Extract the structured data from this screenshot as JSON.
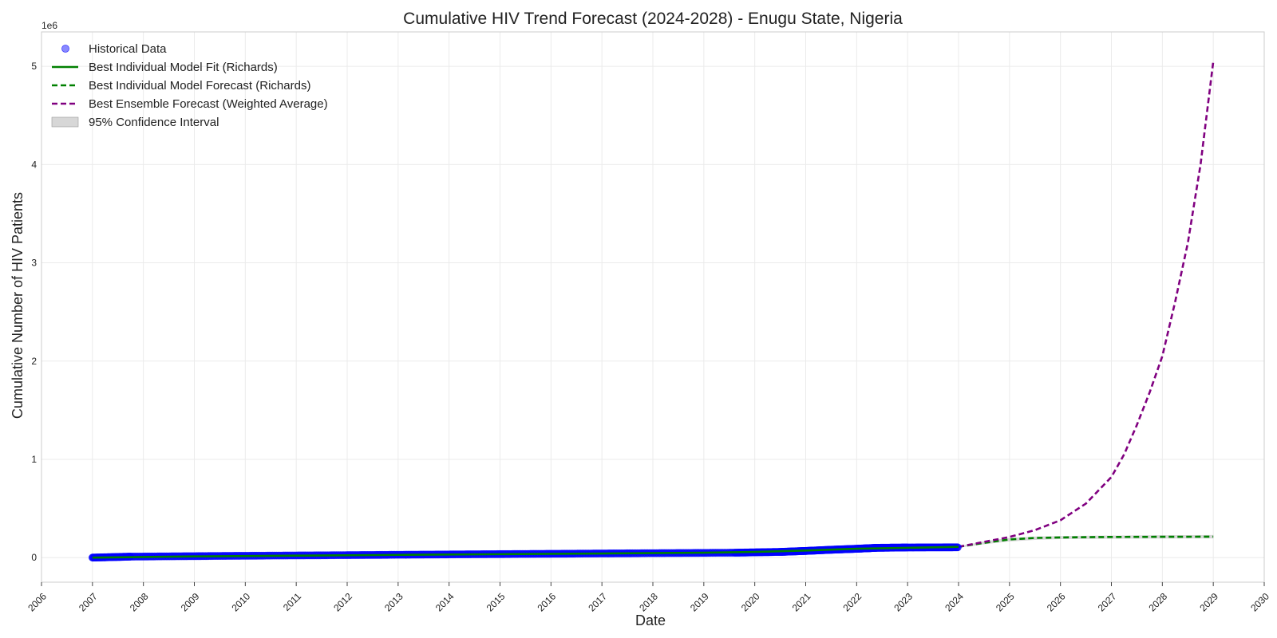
{
  "chart_data": {
    "type": "line",
    "title": "Cumulative HIV Trend Forecast (2024-2028) - Enugu State, Nigeria",
    "xlabel": "Date",
    "ylabel": "Cumulative Number of HIV Patients",
    "y_scale_note": "1e6",
    "xlim": [
      2006,
      2030
    ],
    "ylim": [
      -250000,
      5350000
    ],
    "x_ticks": [
      2006,
      2007,
      2008,
      2009,
      2010,
      2011,
      2012,
      2013,
      2014,
      2015,
      2016,
      2017,
      2018,
      2019,
      2020,
      2021,
      2022,
      2023,
      2024,
      2025,
      2026,
      2027,
      2028,
      2029,
      2030
    ],
    "x_tick_labels": [
      "2006",
      "2007",
      "2008",
      "2009",
      "2010",
      "2011",
      "2012",
      "2013",
      "2014",
      "2015",
      "2016",
      "2017",
      "2018",
      "2019",
      "2020",
      "2021",
      "2022",
      "2023",
      "2024",
      "2025",
      "2026",
      "2027",
      "2028",
      "2029",
      "2030"
    ],
    "y_ticks": [
      0,
      1000000,
      2000000,
      3000000,
      4000000,
      5000000
    ],
    "y_tick_labels": [
      "0",
      "1",
      "2",
      "3",
      "4",
      "5"
    ],
    "grid": true,
    "legend_position": "top-left",
    "legend": [
      {
        "label": "Historical Data",
        "kind": "marker",
        "color": "#3b3bff"
      },
      {
        "label": "Best Individual Model Fit (Richards)",
        "kind": "solid",
        "color": "#008000"
      },
      {
        "label": "Best Individual Model Forecast (Richards)",
        "kind": "dashed",
        "color": "#008000"
      },
      {
        "label": "Best Ensemble Forecast (Weighted Average)",
        "kind": "dashed",
        "color": "#800080"
      },
      {
        "label": "95% Confidence Interval",
        "kind": "patch",
        "color": "#b0b0b0"
      }
    ],
    "series": [
      {
        "name": "Historical Data",
        "style": "scatter",
        "color": "#0000ff",
        "x": [
          2007.0,
          2007.75,
          2009.75,
          2011.9,
          2013.9,
          2015.75,
          2017.6,
          2019.6,
          2020.5,
          2021.0,
          2021.5,
          2022.0,
          2022.4,
          2023.0,
          2024.0
        ],
        "y": [
          0,
          10000,
          18000,
          25000,
          32000,
          38000,
          44000,
          50000,
          58000,
          68000,
          80000,
          90000,
          100000,
          103000,
          105000
        ]
      },
      {
        "name": "Best Individual Model Fit (Richards)",
        "style": "solid",
        "color": "#008000",
        "x": [
          2007.0,
          2009.0,
          2011.0,
          2013.0,
          2015.0,
          2017.0,
          2019.0,
          2020.0,
          2021.0,
          2022.0,
          2023.0,
          2024.0
        ],
        "y": [
          0,
          12000,
          20000,
          28000,
          35000,
          42000,
          50000,
          58000,
          72000,
          90000,
          100000,
          110000
        ]
      },
      {
        "name": "Best Individual Model Forecast (Richards)",
        "style": "dashed",
        "color": "#008000",
        "x": [
          2024.0,
          2024.5,
          2025.0,
          2025.5,
          2026.0,
          2026.5,
          2027.0,
          2028.0,
          2029.0
        ],
        "y": [
          110000,
          150000,
          185000,
          200000,
          205000,
          208000,
          210000,
          212000,
          213000
        ]
      },
      {
        "name": "Best Ensemble Forecast (Weighted Average)",
        "style": "dashed",
        "color": "#800080",
        "x": [
          2024.0,
          2024.5,
          2025.0,
          2025.5,
          2026.0,
          2026.5,
          2027.0,
          2027.25,
          2027.5,
          2027.75,
          2028.0,
          2028.25,
          2028.5,
          2028.75,
          2029.0
        ],
        "y": [
          110000,
          160000,
          210000,
          280000,
          380000,
          550000,
          820000,
          1050000,
          1350000,
          1680000,
          2050000,
          2600000,
          3200000,
          4000000,
          5050000
        ]
      },
      {
        "name": "95% Confidence Interval",
        "style": "band",
        "color": "#b0b0b0",
        "x": [
          2024.0,
          2024.5,
          2025.0,
          2025.5,
          2026.0,
          2027.0,
          2028.0,
          2029.0
        ],
        "lower": [
          100000,
          135000,
          165000,
          180000,
          188000,
          192000,
          194000,
          195000
        ],
        "upper": [
          115000,
          165000,
          200000,
          215000,
          220000,
          225000,
          228000,
          230000
        ]
      }
    ]
  }
}
